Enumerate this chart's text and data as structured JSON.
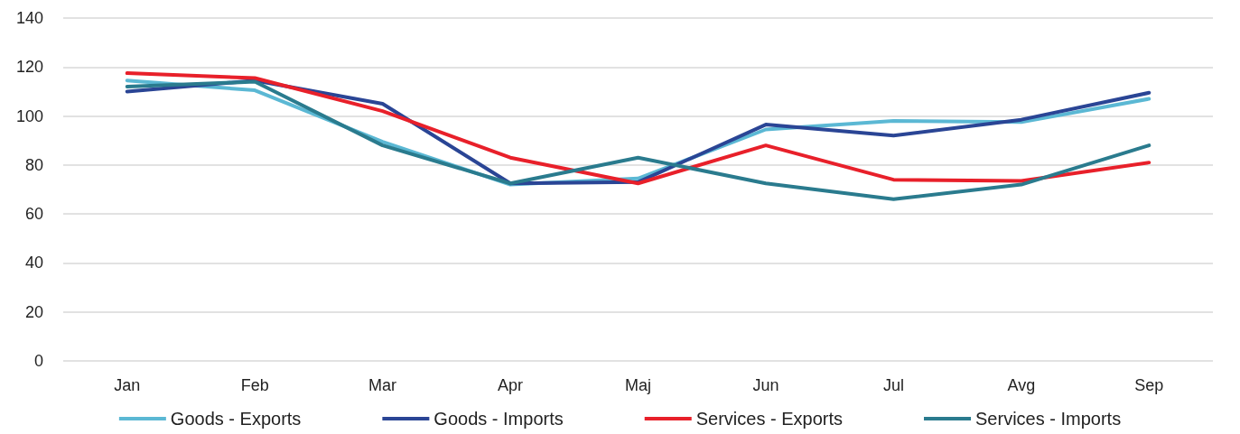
{
  "chart_data": {
    "type": "line",
    "categories": [
      "Jan",
      "Feb",
      "Mar",
      "Apr",
      "Maj",
      "Jun",
      "Jul",
      "Avg",
      "Sep"
    ],
    "series": [
      {
        "name": "Goods - Exports",
        "color": "#5bb8d4",
        "values": [
          114.5,
          110.5,
          89.5,
          72,
          74.5,
          94.5,
          98,
          97.5,
          107
        ]
      },
      {
        "name": "Goods - Imports",
        "color": "#2a4595",
        "values": [
          110,
          114.5,
          105,
          72.5,
          73,
          96.5,
          92,
          98.5,
          109.5
        ]
      },
      {
        "name": "Services - Exports",
        "color": "#e8202a",
        "values": [
          117.5,
          115.5,
          102,
          83,
          72.5,
          88,
          74,
          73.5,
          81
        ]
      },
      {
        "name": "Services - Imports",
        "color": "#2a7b8e",
        "values": [
          112,
          114,
          88,
          72.5,
          83,
          72.5,
          66,
          72,
          88
        ]
      }
    ],
    "ylim": [
      0,
      140
    ],
    "yticks": [
      0,
      20,
      40,
      60,
      80,
      100,
      120,
      140
    ],
    "grid": "y",
    "legend": "bottom",
    "marker": "none",
    "line_style": "solid"
  }
}
